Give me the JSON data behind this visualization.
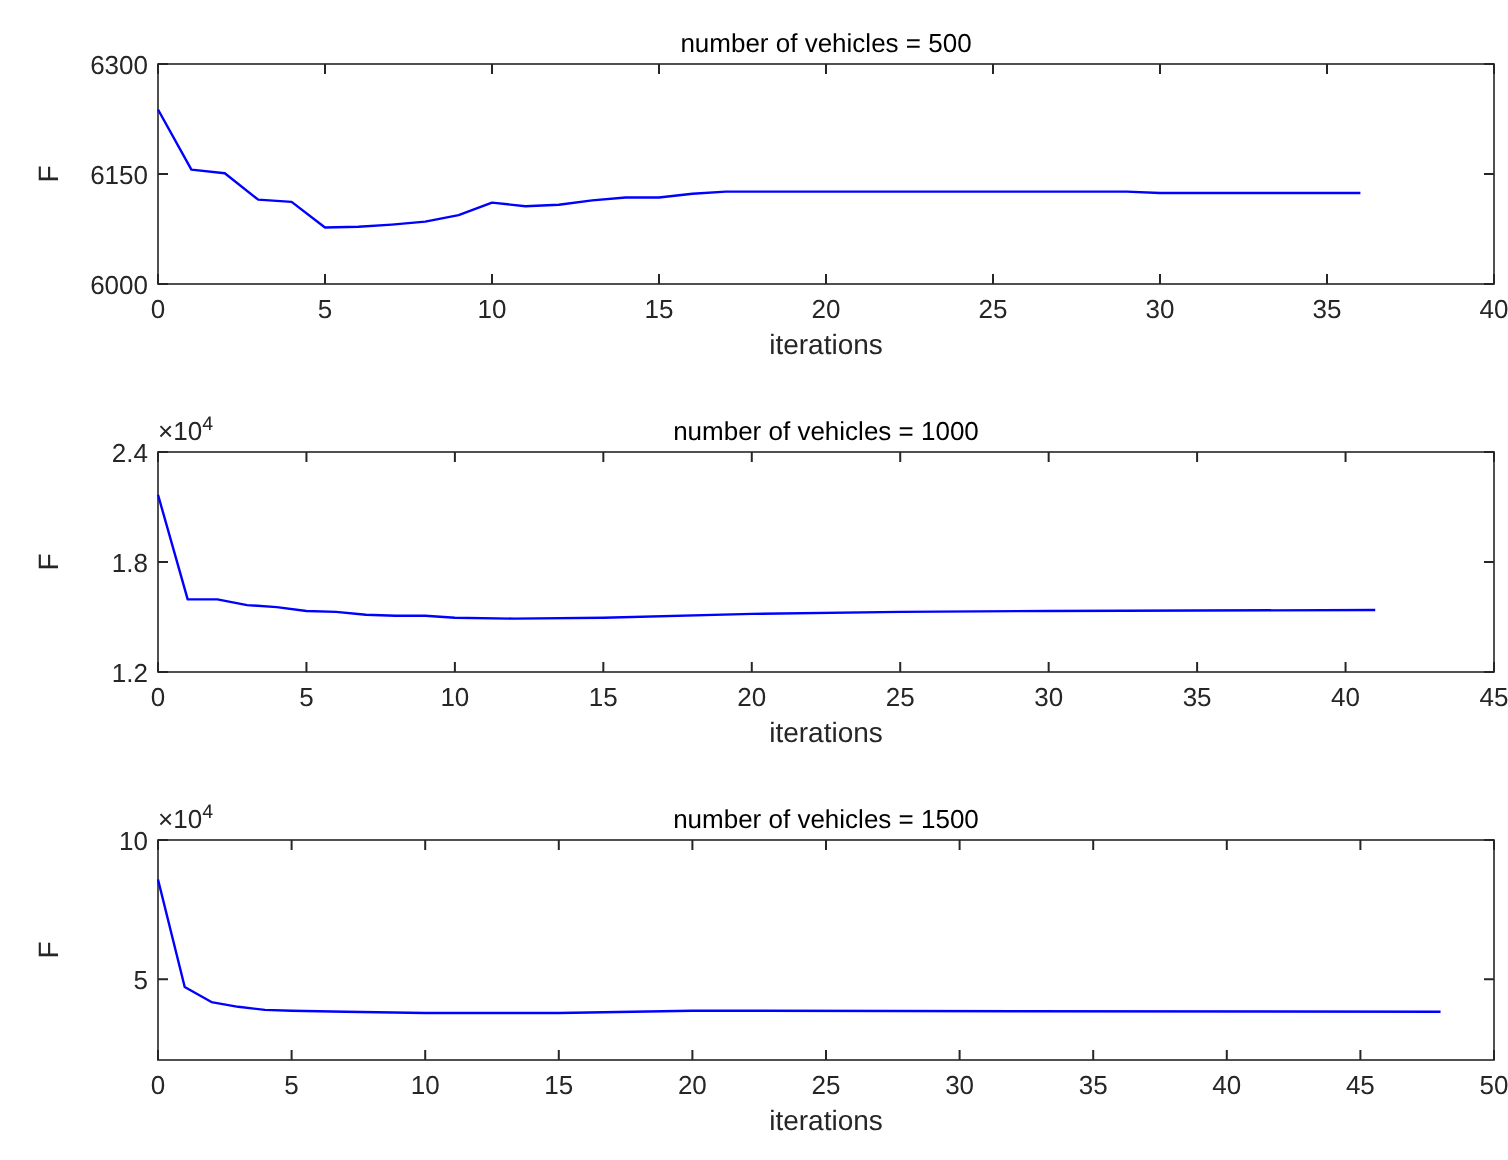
{
  "chart_data": [
    {
      "type": "line",
      "title": "number of vehicles = 500",
      "xlabel": "iterations",
      "ylabel": "F",
      "x": [
        0,
        1,
        2,
        3,
        4,
        5,
        6,
        7,
        8,
        9,
        10,
        11,
        12,
        13,
        14,
        15,
        16,
        17,
        20,
        25,
        29,
        30,
        36
      ],
      "series": [
        {
          "color": "#0000ff",
          "values": [
            6238,
            6156,
            6151,
            6115,
            6112,
            6077,
            6078,
            6081,
            6085,
            6094,
            6111,
            6106,
            6108,
            6114,
            6118,
            6118,
            6123,
            6126,
            6126,
            6126,
            6126,
            6124,
            6124
          ]
        }
      ],
      "xlim": [
        0,
        40
      ],
      "xticks": [
        0,
        5,
        10,
        15,
        20,
        25,
        30,
        35,
        40
      ],
      "ylim": [
        6000,
        6300
      ],
      "yticks": [
        6000,
        6150,
        6300
      ]
    },
    {
      "type": "line",
      "title": "number of vehicles = 1000",
      "xlabel": "iterations",
      "ylabel": "F",
      "annotations": [
        "×10$^{4}$"
      ],
      "x": [
        0,
        1,
        2,
        3,
        4,
        5,
        6,
        7,
        8,
        9,
        10,
        12,
        15,
        20,
        25,
        30,
        41
      ],
      "series": [
        {
          "color": "#0000ff",
          "values": [
            2.167,
            1.596,
            1.596,
            1.565,
            1.554,
            1.533,
            1.528,
            1.512,
            1.507,
            1.507,
            1.496,
            1.491,
            1.496,
            1.517,
            1.528,
            1.533,
            1.538
          ]
        }
      ],
      "xlim": [
        0,
        45
      ],
      "xticks": [
        0,
        5,
        10,
        15,
        20,
        25,
        30,
        35,
        40,
        45
      ],
      "ylim": [
        1.2,
        2.4
      ],
      "yticks": [
        1.2,
        1.8,
        2.4
      ]
    },
    {
      "type": "line",
      "title": "number of vehicles = 1500",
      "xlabel": "iterations",
      "ylabel": "F",
      "annotations": [
        "×10$^{4}$"
      ],
      "x": [
        0,
        1,
        2,
        3,
        4,
        5,
        7,
        10,
        15,
        20,
        48
      ],
      "series": [
        {
          "color": "#0000ff",
          "values": [
            8.58,
            4.72,
            4.18,
            4.01,
            3.9,
            3.87,
            3.83,
            3.79,
            3.79,
            3.87,
            3.83
          ]
        }
      ],
      "xlim": [
        0,
        50
      ],
      "xticks": [
        0,
        5,
        10,
        15,
        20,
        25,
        30,
        35,
        40,
        45,
        50
      ],
      "ylim": [
        2.1,
        10
      ],
      "yticks": [
        5,
        10
      ]
    }
  ]
}
